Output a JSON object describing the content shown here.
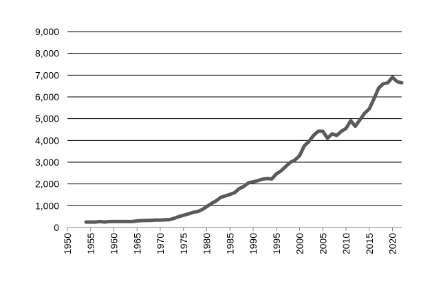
{
  "chart_data": {
    "type": "line",
    "title": "",
    "xlabel": "",
    "ylabel": "",
    "xlim": [
      1950,
      2022
    ],
    "ylim": [
      0,
      9000
    ],
    "x_ticks": [
      "1950",
      "1955",
      "1960",
      "1965",
      "1970",
      "1975",
      "1980",
      "1985",
      "1990",
      "1995",
      "2000",
      "2005",
      "2010",
      "2015",
      "2020"
    ],
    "y_ticks": [
      "0",
      "1,000",
      "2,000",
      "3,000",
      "4,000",
      "5,000",
      "6,000",
      "7,000",
      "8,000",
      "9,000"
    ],
    "grid": "horizontal",
    "legend": "none",
    "colors": {
      "line": "#5a5a5a",
      "grid": "#000000",
      "axis": "#808080"
    },
    "series": [
      {
        "x": [
          1954,
          1955,
          1956,
          1957,
          1958,
          1959,
          1960,
          1961,
          1962,
          1963,
          1964,
          1965,
          1966,
          1967,
          1968,
          1969,
          1970,
          1971,
          1972,
          1973,
          1974,
          1975,
          1976,
          1977,
          1978,
          1979,
          1980,
          1981,
          1982,
          1983,
          1984,
          1985,
          1986,
          1987,
          1988,
          1989,
          1990,
          1991,
          1992,
          1993,
          1994,
          1995,
          1996,
          1997,
          1998,
          1999,
          2000,
          2001,
          2002,
          2003,
          2004,
          2005,
          2006,
          2007,
          2008,
          2009,
          2010,
          2011,
          2012,
          2013,
          2014,
          2015,
          2016,
          2017,
          2018,
          2019,
          2020,
          2021,
          2022
        ],
        "values": [
          250,
          250,
          250,
          270,
          250,
          270,
          270,
          270,
          270,
          270,
          270,
          300,
          320,
          320,
          330,
          340,
          340,
          350,
          360,
          420,
          500,
          560,
          620,
          690,
          730,
          820,
          960,
          1100,
          1220,
          1380,
          1450,
          1520,
          1600,
          1780,
          1890,
          2050,
          2100,
          2150,
          2220,
          2250,
          2230,
          2460,
          2600,
          2800,
          2990,
          3100,
          3300,
          3750,
          3950,
          4230,
          4420,
          4420,
          4100,
          4300,
          4230,
          4420,
          4550,
          4900,
          4650,
          4950,
          5250,
          5450,
          5900,
          6400,
          6600,
          6650,
          6900,
          6700,
          6650
        ]
      }
    ]
  }
}
